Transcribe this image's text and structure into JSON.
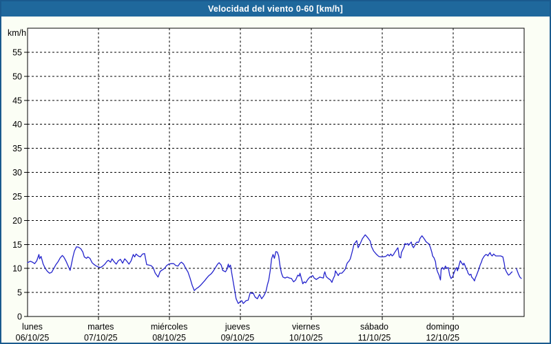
{
  "window": {
    "title": "Velocidad del viento 0-60 [km/h]"
  },
  "colors": {
    "titlebar_bg": "#1f689c",
    "titlebar_text": "#ffffff",
    "page_bg": "#fbfef5",
    "page_border": "#1a5a8e",
    "plot_bg": "#ffffff",
    "plot_border": "#000000",
    "grid": "#000000",
    "line": "#2222cc",
    "label_text": "#000000"
  },
  "chart_data": {
    "type": "line",
    "title": "Velocidad del viento 0-60 [km/h]",
    "xlabel": "",
    "ylabel": "km/h",
    "ylim": [
      0,
      60
    ],
    "ytick_step": 5,
    "ytick_labels": [
      "0",
      "5",
      "10",
      "15",
      "20",
      "25",
      "30",
      "35",
      "40",
      "45",
      "50",
      "55"
    ],
    "grid": "dashed",
    "legend_position": "none",
    "x_axis_unit": "days",
    "x_range_days": [
      0,
      7
    ],
    "categories": [
      {
        "name": "lunes",
        "date": "06/10/25"
      },
      {
        "name": "martes",
        "date": "07/10/25"
      },
      {
        "name": "miércoles",
        "date": "08/10/25"
      },
      {
        "name": "jueves",
        "date": "09/10/25"
      },
      {
        "name": "viernes",
        "date": "10/10/25"
      },
      {
        "name": "sábado",
        "date": "11/10/25"
      },
      {
        "name": "domingo",
        "date": "12/10/25"
      }
    ],
    "series": [
      {
        "name": "Velocidad del viento",
        "color": "#2222cc",
        "points": [
          [
            0.0,
            11.2
          ],
          [
            0.04,
            11.5
          ],
          [
            0.07,
            11.3
          ],
          [
            0.1,
            11.0
          ],
          [
            0.13,
            11.6
          ],
          [
            0.16,
            12.9
          ],
          [
            0.17,
            12.0
          ],
          [
            0.19,
            12.5
          ],
          [
            0.22,
            10.9
          ],
          [
            0.25,
            10.0
          ],
          [
            0.28,
            9.4
          ],
          [
            0.31,
            9.0
          ],
          [
            0.34,
            9.2
          ],
          [
            0.37,
            10.0
          ],
          [
            0.4,
            10.8
          ],
          [
            0.43,
            11.4
          ],
          [
            0.46,
            12.2
          ],
          [
            0.49,
            12.7
          ],
          [
            0.51,
            12.4
          ],
          [
            0.54,
            11.6
          ],
          [
            0.57,
            10.6
          ],
          [
            0.6,
            9.6
          ],
          [
            0.62,
            11.0
          ],
          [
            0.64,
            12.4
          ],
          [
            0.66,
            13.6
          ],
          [
            0.69,
            14.5
          ],
          [
            0.72,
            14.4
          ],
          [
            0.75,
            14.1
          ],
          [
            0.78,
            13.4
          ],
          [
            0.8,
            12.4
          ],
          [
            0.83,
            12.1
          ],
          [
            0.85,
            12.4
          ],
          [
            0.88,
            12.1
          ],
          [
            0.91,
            11.2
          ],
          [
            0.94,
            10.8
          ],
          [
            0.97,
            10.5
          ],
          [
            1.0,
            10.3
          ],
          [
            1.03,
            10.2
          ],
          [
            1.06,
            10.5
          ],
          [
            1.09,
            10.9
          ],
          [
            1.12,
            11.5
          ],
          [
            1.14,
            11.7
          ],
          [
            1.17,
            11.3
          ],
          [
            1.19,
            12.0
          ],
          [
            1.22,
            11.4
          ],
          [
            1.25,
            10.9
          ],
          [
            1.28,
            11.6
          ],
          [
            1.31,
            11.9
          ],
          [
            1.34,
            11.1
          ],
          [
            1.37,
            12.0
          ],
          [
            1.4,
            11.5
          ],
          [
            1.43,
            10.9
          ],
          [
            1.46,
            11.6
          ],
          [
            1.49,
            12.9
          ],
          [
            1.51,
            12.4
          ],
          [
            1.53,
            13.0
          ],
          [
            1.56,
            12.6
          ],
          [
            1.59,
            12.4
          ],
          [
            1.62,
            13.0
          ],
          [
            1.65,
            13.1
          ],
          [
            1.68,
            10.8
          ],
          [
            1.71,
            10.7
          ],
          [
            1.74,
            10.6
          ],
          [
            1.77,
            10.2
          ],
          [
            1.8,
            9.0
          ],
          [
            1.83,
            8.4
          ],
          [
            1.84,
            8.2
          ],
          [
            1.87,
            9.4
          ],
          [
            1.9,
            9.7
          ],
          [
            1.93,
            10.0
          ],
          [
            1.96,
            10.6
          ],
          [
            1.99,
            10.9
          ],
          [
            2.02,
            11.0
          ],
          [
            2.06,
            11.0
          ],
          [
            2.09,
            10.6
          ],
          [
            2.12,
            10.5
          ],
          [
            2.15,
            11.1
          ],
          [
            2.17,
            11.3
          ],
          [
            2.2,
            10.9
          ],
          [
            2.23,
            10.0
          ],
          [
            2.26,
            9.3
          ],
          [
            2.29,
            8.0
          ],
          [
            2.32,
            6.5
          ],
          [
            2.35,
            5.4
          ],
          [
            2.38,
            5.8
          ],
          [
            2.41,
            6.1
          ],
          [
            2.44,
            6.5
          ],
          [
            2.47,
            7.0
          ],
          [
            2.5,
            7.5
          ],
          [
            2.52,
            7.9
          ],
          [
            2.55,
            8.4
          ],
          [
            2.59,
            8.9
          ],
          [
            2.62,
            9.5
          ],
          [
            2.65,
            10.2
          ],
          [
            2.68,
            10.9
          ],
          [
            2.7,
            11.2
          ],
          [
            2.73,
            10.7
          ],
          [
            2.75,
            9.6
          ],
          [
            2.79,
            9.3
          ],
          [
            2.81,
            9.8
          ],
          [
            2.83,
            10.9
          ],
          [
            2.84,
            10.2
          ],
          [
            2.86,
            10.7
          ],
          [
            2.88,
            8.9
          ],
          [
            2.91,
            6.3
          ],
          [
            2.94,
            3.7
          ],
          [
            2.97,
            2.7
          ],
          [
            3.0,
            3.1
          ],
          [
            3.02,
            3.3
          ],
          [
            3.04,
            2.7
          ],
          [
            3.06,
            3.0
          ],
          [
            3.08,
            3.3
          ],
          [
            3.11,
            3.4
          ],
          [
            3.14,
            5.0
          ],
          [
            3.16,
            4.8
          ],
          [
            3.18,
            4.9
          ],
          [
            3.21,
            4.0
          ],
          [
            3.24,
            3.7
          ],
          [
            3.27,
            4.6
          ],
          [
            3.3,
            3.7
          ],
          [
            3.33,
            4.3
          ],
          [
            3.36,
            5.2
          ],
          [
            3.38,
            6.5
          ],
          [
            3.4,
            7.6
          ],
          [
            3.42,
            9.5
          ],
          [
            3.44,
            12.0
          ],
          [
            3.46,
            12.9
          ],
          [
            3.48,
            12.1
          ],
          [
            3.5,
            13.5
          ],
          [
            3.52,
            13.4
          ],
          [
            3.54,
            12.6
          ],
          [
            3.56,
            10.4
          ],
          [
            3.58,
            9.0
          ],
          [
            3.6,
            8.2
          ],
          [
            3.63,
            8.0
          ],
          [
            3.66,
            8.2
          ],
          [
            3.69,
            8.0
          ],
          [
            3.72,
            7.9
          ],
          [
            3.75,
            7.2
          ],
          [
            3.78,
            7.6
          ],
          [
            3.81,
            8.6
          ],
          [
            3.83,
            8.4
          ],
          [
            3.84,
            9.0
          ],
          [
            3.86,
            7.9
          ],
          [
            3.88,
            6.8
          ],
          [
            3.9,
            7.2
          ],
          [
            3.92,
            7.0
          ],
          [
            3.95,
            7.7
          ],
          [
            3.98,
            8.2
          ],
          [
            4.0,
            8.3
          ],
          [
            4.02,
            8.5
          ],
          [
            4.04,
            8.0
          ],
          [
            4.07,
            7.7
          ],
          [
            4.09,
            7.9
          ],
          [
            4.12,
            8.2
          ],
          [
            4.14,
            8.1
          ],
          [
            4.17,
            8.0
          ],
          [
            4.18,
            8.8
          ],
          [
            4.19,
            9.3
          ],
          [
            4.21,
            8.3
          ],
          [
            4.24,
            7.9
          ],
          [
            4.27,
            7.6
          ],
          [
            4.29,
            7.1
          ],
          [
            4.31,
            7.9
          ],
          [
            4.33,
            8.5
          ],
          [
            4.34,
            9.5
          ],
          [
            4.36,
            9.0
          ],
          [
            4.38,
            8.5
          ],
          [
            4.4,
            9.0
          ],
          [
            4.43,
            9.0
          ],
          [
            4.46,
            9.5
          ],
          [
            4.48,
            9.9
          ],
          [
            4.5,
            10.9
          ],
          [
            4.51,
            11.2
          ],
          [
            4.53,
            11.5
          ],
          [
            4.55,
            12.0
          ],
          [
            4.57,
            13.1
          ],
          [
            4.59,
            14.3
          ],
          [
            4.6,
            15.0
          ],
          [
            4.62,
            15.4
          ],
          [
            4.64,
            15.8
          ],
          [
            4.66,
            14.3
          ],
          [
            4.69,
            15.2
          ],
          [
            4.72,
            16.2
          ],
          [
            4.74,
            16.6
          ],
          [
            4.76,
            17.0
          ],
          [
            4.79,
            16.5
          ],
          [
            4.83,
            15.7
          ],
          [
            4.85,
            14.5
          ],
          [
            4.88,
            13.6
          ],
          [
            4.92,
            12.9
          ],
          [
            4.95,
            12.5
          ],
          [
            4.98,
            12.4
          ],
          [
            5.01,
            12.4
          ],
          [
            5.05,
            12.5
          ],
          [
            5.08,
            12.9
          ],
          [
            5.1,
            12.6
          ],
          [
            5.12,
            13.0
          ],
          [
            5.14,
            12.6
          ],
          [
            5.16,
            12.9
          ],
          [
            5.17,
            13.2
          ],
          [
            5.21,
            14.1
          ],
          [
            5.22,
            14.3
          ],
          [
            5.24,
            12.4
          ],
          [
            5.26,
            12.2
          ],
          [
            5.27,
            13.3
          ],
          [
            5.31,
            14.5
          ],
          [
            5.32,
            15.2
          ],
          [
            5.34,
            15.0
          ],
          [
            5.36,
            15.2
          ],
          [
            5.37,
            14.8
          ],
          [
            5.39,
            15.2
          ],
          [
            5.41,
            15.5
          ],
          [
            5.42,
            14.8
          ],
          [
            5.44,
            14.3
          ],
          [
            5.46,
            14.8
          ],
          [
            5.47,
            15.2
          ],
          [
            5.49,
            15.5
          ],
          [
            5.51,
            15.4
          ],
          [
            5.52,
            15.7
          ],
          [
            5.53,
            16.2
          ],
          [
            5.55,
            16.6
          ],
          [
            5.56,
            16.8
          ],
          [
            5.58,
            16.4
          ],
          [
            5.6,
            16.0
          ],
          [
            5.61,
            15.7
          ],
          [
            5.63,
            15.4
          ],
          [
            5.65,
            15.2
          ],
          [
            5.66,
            15.1
          ],
          [
            5.68,
            14.3
          ],
          [
            5.7,
            13.3
          ],
          [
            5.71,
            12.6
          ],
          [
            5.73,
            12.2
          ],
          [
            5.75,
            11.4
          ],
          [
            5.76,
            10.2
          ],
          [
            5.78,
            9.3
          ],
          [
            5.8,
            8.6
          ],
          [
            5.82,
            7.6
          ],
          [
            5.83,
            9.8
          ],
          [
            5.85,
            10.2
          ],
          [
            5.87,
            9.8
          ],
          [
            5.89,
            10.5
          ],
          [
            5.91,
            10.0
          ],
          [
            5.93,
            10.2
          ],
          [
            5.95,
            8.6
          ],
          [
            5.97,
            7.9
          ],
          [
            5.99,
            8.2
          ],
          [
            6.01,
            9.0
          ],
          [
            6.03,
            9.8
          ],
          [
            6.05,
            10.2
          ],
          [
            6.06,
            9.5
          ],
          [
            6.08,
            10.5
          ],
          [
            6.09,
            11.1
          ],
          [
            6.1,
            11.6
          ],
          [
            6.12,
            11.1
          ],
          [
            6.14,
            10.7
          ],
          [
            6.15,
            11.1
          ],
          [
            6.17,
            10.5
          ],
          [
            6.18,
            10.0
          ],
          [
            6.2,
            9.5
          ],
          [
            6.21,
            9.0
          ],
          [
            6.23,
            8.6
          ],
          [
            6.25,
            8.8
          ],
          [
            6.26,
            8.2
          ],
          [
            6.28,
            7.9
          ],
          [
            6.3,
            7.4
          ],
          [
            6.31,
            7.9
          ],
          [
            6.33,
            8.6
          ],
          [
            6.34,
            9.0
          ],
          [
            6.36,
            9.8
          ],
          [
            6.38,
            10.7
          ],
          [
            6.4,
            11.4
          ],
          [
            6.41,
            11.9
          ],
          [
            6.43,
            12.4
          ],
          [
            6.44,
            12.6
          ],
          [
            6.46,
            12.9
          ],
          [
            6.48,
            12.8
          ],
          [
            6.49,
            12.6
          ],
          [
            6.5,
            12.9
          ],
          [
            6.52,
            13.3
          ],
          [
            6.53,
            12.9
          ],
          [
            6.55,
            12.6
          ],
          [
            6.57,
            13.0
          ],
          [
            6.6,
            12.6
          ],
          [
            6.63,
            12.6
          ],
          [
            6.67,
            12.6
          ],
          [
            6.7,
            12.4
          ],
          [
            6.72,
            11.0
          ],
          [
            6.73,
            10.0
          ],
          [
            6.75,
            9.3
          ],
          [
            6.77,
            8.8
          ],
          [
            6.78,
            8.6
          ],
          [
            6.8,
            8.8
          ],
          [
            6.81,
            9.0
          ],
          [
            6.83,
            9.3
          ],
          null,
          [
            6.89,
            10.0
          ],
          [
            6.92,
            8.8
          ],
          [
            6.94,
            8.2
          ],
          [
            6.96,
            7.9
          ]
        ]
      }
    ]
  }
}
